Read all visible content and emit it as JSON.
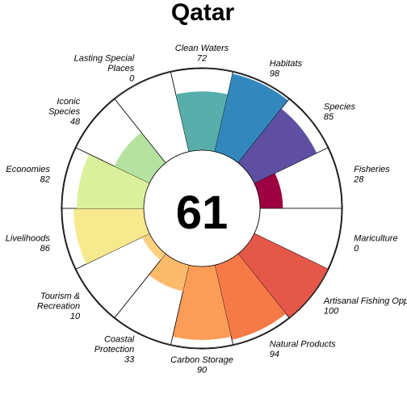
{
  "chart_data": {
    "type": "flower",
    "title": "Qatar",
    "center_score": 61,
    "value_max": 100,
    "petals": [
      {
        "label_lines": [
          "Fisheries"
        ],
        "score": 28,
        "color": "#9E0142"
      },
      {
        "label_lines": [
          "Mariculture"
        ],
        "score": 0,
        "color": "#C72C4A"
      },
      {
        "label_lines": [
          "Artisanal Fishing Opportunities"
        ],
        "score": 100,
        "color": "#E55749"
      },
      {
        "label_lines": [
          "Natural Products"
        ],
        "score": 94,
        "color": "#F67948"
      },
      {
        "label_lines": [
          "Carbon Storage"
        ],
        "score": 90,
        "color": "#FB9D59"
      },
      {
        "label_lines": [
          "Coastal",
          "Protection"
        ],
        "score": 33,
        "color": "#FDBA6B"
      },
      {
        "label_lines": [
          "Tourism &",
          "Recreation"
        ],
        "score": 10,
        "color": "#FDD07E"
      },
      {
        "label_lines": [
          "Livelihoods"
        ],
        "score": 86,
        "color": "#F7E98E"
      },
      {
        "label_lines": [
          "Economies"
        ],
        "score": 82,
        "color": "#DAF09A"
      },
      {
        "label_lines": [
          "Iconic",
          "Species"
        ],
        "score": 48,
        "color": "#B6E2A0"
      },
      {
        "label_lines": [
          "Lasting Special",
          "Places"
        ],
        "score": 0,
        "color": "#8FD1A4"
      },
      {
        "label_lines": [
          "Clean Waters"
        ],
        "score": 72,
        "color": "#57AEAA"
      },
      {
        "label_lines": [
          "Habitats"
        ],
        "score": 98,
        "color": "#3288BD"
      },
      {
        "label_lines": [
          "Species"
        ],
        "score": 85,
        "color": "#5E4FA2"
      }
    ]
  }
}
